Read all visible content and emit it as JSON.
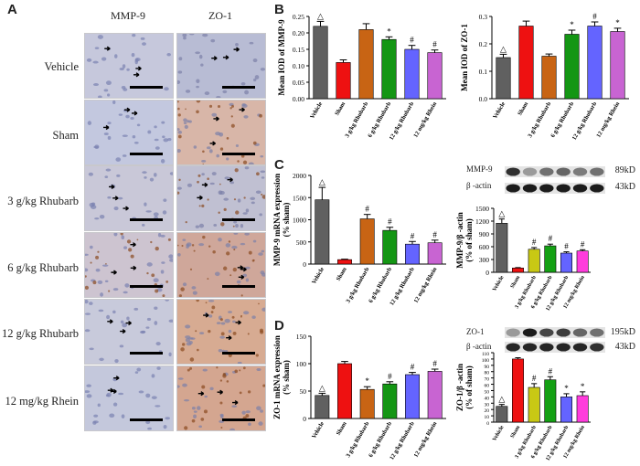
{
  "panels": {
    "A": "A",
    "B": "B",
    "C": "C",
    "D": "D"
  },
  "micrographs": {
    "columns": [
      "MMP-9",
      "ZO-1"
    ],
    "rows": [
      "Vehicle",
      "Sham",
      "3 g/kg Rhubarb",
      "6 g/kg Rhubarb",
      "12 g/kg Rhubarb",
      "12 mg/kg Rhein"
    ]
  },
  "colors": {
    "Vehicle": "#606060",
    "Sham": "#ee1111",
    "3 g/kg Rhubarb": "#c86414",
    "6 g/kg Rhubarb": "#149614",
    "12 g/kg Rhubarb": "#6464ff",
    "12 mg/kg Rhein": "#c864d2",
    "wb_3": "#c8c814",
    "wb_6": "#14a014",
    "wb_12": "#6464ff",
    "wb_rhein": "#ff3cdc"
  },
  "blots": {
    "C": {
      "top_label": "MMP-9",
      "top_kd": "89kD",
      "bottom_label": "β -actin",
      "bottom_kd": "43kD"
    },
    "D": {
      "top_label": "ZO-1",
      "top_kd": "195kD",
      "bottom_label": "β -actin",
      "bottom_kd": "43kD"
    }
  },
  "chart_data": [
    {
      "id": "B-left",
      "type": "bar",
      "categories": [
        "Vehicle",
        "Sham",
        "3 g/kg Rhubarb",
        "6 g/kg Rhubarb",
        "12 g/kg Rhubarb",
        "12 mg/kg Rhein"
      ],
      "values": [
        0.22,
        0.11,
        0.21,
        0.18,
        0.15,
        0.14
      ],
      "errors": [
        0.015,
        0.008,
        0.018,
        0.008,
        0.012,
        0.008
      ],
      "markers": [
        "△",
        "",
        "",
        "*",
        "#",
        "#"
      ],
      "ylabel": "Mean IOD of MMP-9",
      "ylim": [
        0,
        0.25
      ],
      "yticks": [
        0.0,
        0.05,
        0.1,
        0.15,
        0.2,
        0.25
      ],
      "ytick_labels": [
        "0.00",
        "0.05",
        "0.10",
        "0.15",
        "0.20",
        "0.25"
      ]
    },
    {
      "id": "B-right",
      "type": "bar",
      "categories": [
        "Vehicle",
        "Sham",
        "3 g/kg Rhubarb",
        "6 g/kg Rhubarb",
        "12 g/kg Rhubarb",
        "12 mg/kg Rhein"
      ],
      "values": [
        0.15,
        0.265,
        0.155,
        0.235,
        0.265,
        0.245
      ],
      "errors": [
        0.012,
        0.018,
        0.008,
        0.015,
        0.015,
        0.012
      ],
      "markers": [
        "△",
        "",
        "",
        "*",
        "#",
        "*"
      ],
      "ylabel": "Mean IOD of ZO-1",
      "ylim": [
        0,
        0.3
      ],
      "yticks": [
        0.0,
        0.1,
        0.2,
        0.3
      ],
      "ytick_labels": [
        "0.0",
        "0.1",
        "0.2",
        "0.3"
      ]
    },
    {
      "id": "C-left",
      "type": "bar",
      "categories": [
        "Vehicle",
        "Sham",
        "3 g/kg Rhubarb",
        "6 g/kg Rhubarb",
        "12 g/kg Rhubarb",
        "12 mg/kg Rhein"
      ],
      "values": [
        1450,
        100,
        1020,
        760,
        450,
        480
      ],
      "errors": [
        280,
        10,
        100,
        70,
        60,
        60
      ],
      "markers": [
        "△",
        "",
        "#",
        "#",
        "#",
        "#"
      ],
      "ylabel": "MMP-9 mRNA expression\n(% sham)",
      "ylim": [
        0,
        2000
      ],
      "yticks": [
        0,
        500,
        1000,
        1500,
        2000
      ],
      "ytick_labels": [
        "0",
        "500",
        "1000",
        "1500",
        "2000"
      ]
    },
    {
      "id": "C-right",
      "type": "bar",
      "categories": [
        "Vehicle",
        "Sham",
        "3 g/kg Rhubarb",
        "6 g/kg Rhubarb",
        "12 g/kg Rhubarb",
        "12 mg/kg Rhein"
      ],
      "values": [
        1150,
        100,
        540,
        620,
        450,
        500
      ],
      "errors": [
        100,
        10,
        40,
        40,
        30,
        30
      ],
      "markers": [
        "△",
        "",
        "#",
        "#",
        "#",
        "#"
      ],
      "ylabel": "MMP-9/β -actin\n(% of sham)",
      "ylim": [
        0,
        1500
      ],
      "yticks": [
        0,
        300,
        600,
        900,
        1200,
        1500
      ],
      "ytick_labels": [
        "0",
        "300",
        "600",
        "900",
        "1200",
        "1500"
      ]
    },
    {
      "id": "D-left",
      "type": "bar",
      "categories": [
        "Vehicle",
        "Sham",
        "3 g/kg Rhubarb",
        "6 g/kg Rhubarb",
        "12 g/kg Rhubarb",
        "12 mg/kg Rhein"
      ],
      "values": [
        42,
        100,
        53,
        63,
        80,
        86
      ],
      "errors": [
        4,
        4,
        5,
        4,
        4,
        4
      ],
      "markers": [
        "△",
        "",
        "*",
        "#",
        "#",
        "#"
      ],
      "ylabel": "ZO-1 mRNA expression\n(% sham)",
      "ylim": [
        0,
        150
      ],
      "yticks": [
        0,
        50,
        100,
        150
      ],
      "ytick_labels": [
        "0",
        "50",
        "100",
        "150"
      ]
    },
    {
      "id": "D-right",
      "type": "bar",
      "categories": [
        "Vehicle",
        "Sham",
        "3 g/kg Rhubarb",
        "6 g/kg Rhubarb",
        "12 g/kg Rhubarb",
        "12 mg/kg Rhein"
      ],
      "values": [
        25,
        100,
        55,
        67,
        40,
        42
      ],
      "errors": [
        3,
        2,
        6,
        5,
        5,
        6
      ],
      "markers": [
        "△",
        "",
        "#",
        "#",
        "*",
        "*"
      ],
      "ylabel": "ZO-1/β -actin\n(% of sham)",
      "ylim": [
        0,
        110
      ],
      "yticks": [
        0,
        10,
        20,
        30,
        40,
        50,
        60,
        70,
        80,
        90,
        100,
        110
      ],
      "ytick_labels": [
        "0",
        "10",
        "20",
        "30",
        "40",
        "50",
        "60",
        "70",
        "80",
        "90",
        "100",
        "110"
      ]
    }
  ]
}
